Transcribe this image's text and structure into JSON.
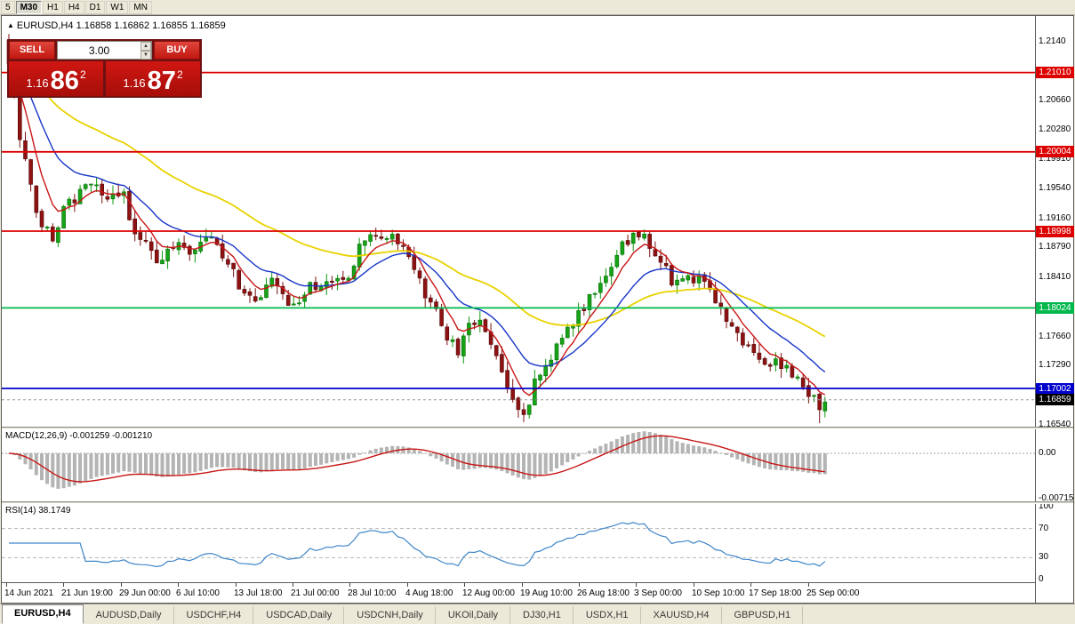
{
  "toolbar": {
    "timeframes": [
      {
        "label": "5",
        "active": false
      },
      {
        "label": "M30",
        "active": true
      },
      {
        "label": "H1",
        "active": false
      },
      {
        "label": "H4",
        "active": false
      },
      {
        "label": "D1",
        "active": false
      },
      {
        "label": "W1",
        "active": false
      },
      {
        "label": "MN",
        "active": false
      }
    ]
  },
  "chart": {
    "title_symbol": "EURUSD,H4",
    "title_quotes": "1.16858 1.16862 1.16855 1.16859",
    "marker": "▲",
    "axis_ticks": [
      "1.2140",
      "1.20660",
      "1.20280",
      "1.19910",
      "1.19540",
      "1.19160",
      "1.18790",
      "1.18410",
      "1.18040",
      "1.17660",
      "1.17290",
      "1.16540"
    ],
    "price_lines": [
      {
        "price": 1.2101,
        "label": "1.21010",
        "color": "#dd0000"
      },
      {
        "price": 1.20004,
        "label": "1.20004",
        "color": "#dd0000"
      },
      {
        "price": 1.18998,
        "label": "1.18998",
        "color": "#dd0000"
      },
      {
        "price": 1.18024,
        "label": "1.18024",
        "color": "#00b84c"
      },
      {
        "price": 1.17002,
        "label": "1.17002",
        "color": "#0000cc"
      }
    ],
    "current_price": {
      "price": 1.16859,
      "label": "1.16859",
      "color": "#000000"
    },
    "time_labels": [
      "14 Jun 2021",
      "21 Jun 19:00",
      "29 Jun 00:00",
      "6 Jul 10:00",
      "13 Jul 18:00",
      "21 Jul 00:00",
      "28 Jul 10:00",
      "4 Aug 18:00",
      "12 Aug 00:00",
      "19 Aug 10:00",
      "26 Aug 18:00",
      "3 Sep 00:00",
      "10 Sep 10:00",
      "17 Sep 18:00",
      "25 Sep 00:00"
    ]
  },
  "trade_panel": {
    "sell_label": "SELL",
    "buy_label": "BUY",
    "volume": "3.00",
    "sell_price": {
      "base": "1.16",
      "big": "86",
      "sup": "2"
    },
    "buy_price": {
      "base": "1.16",
      "big": "87",
      "sup": "2"
    }
  },
  "macd": {
    "label": "MACD(12,26,9) -0.001259 -0.001210",
    "axis": [
      {
        "text": "0.00",
        "value": 0
      },
      {
        "text": "-0.00715",
        "value": -0.00715
      }
    ]
  },
  "rsi": {
    "label": "RSI(14) 38.1749",
    "axis": [
      100,
      70,
      30,
      0
    ],
    "levels": [
      70,
      30
    ]
  },
  "tabs": [
    {
      "label": "EURUSD,H4",
      "active": true
    },
    {
      "label": "AUDUSD,Daily",
      "active": false
    },
    {
      "label": "USDCHF,H4",
      "active": false
    },
    {
      "label": "USDCAD,Daily",
      "active": false
    },
    {
      "label": "USDCNH,Daily",
      "active": false
    },
    {
      "label": "UKOil,Daily",
      "active": false
    },
    {
      "label": "DJ30,H1",
      "active": false
    },
    {
      "label": "USDX,H1",
      "active": false
    },
    {
      "label": "XAUUSD,H4",
      "active": false
    },
    {
      "label": "GBPUSD,H1",
      "active": false
    }
  ],
  "chart_data": {
    "type": "candlestick",
    "symbol": "EURUSD",
    "period": "H4",
    "visible_price_range": [
      1.1652,
      1.2173
    ],
    "indicators": {
      "macd_values": [
        -0.001259,
        -0.00121
      ],
      "rsi_value": 38.1749
    },
    "price_path_anchors": [
      [
        0.0,
        1.212
      ],
      [
        0.013,
        1.202
      ],
      [
        0.035,
        1.1925
      ],
      [
        0.051,
        1.189
      ],
      [
        0.073,
        1.1935
      ],
      [
        0.094,
        1.196
      ],
      [
        0.121,
        1.1945
      ],
      [
        0.138,
        1.195
      ],
      [
        0.154,
        1.1905
      ],
      [
        0.17,
        1.1875
      ],
      [
        0.187,
        1.186
      ],
      [
        0.208,
        1.189
      ],
      [
        0.224,
        1.1875
      ],
      [
        0.246,
        1.1895
      ],
      [
        0.268,
        1.1855
      ],
      [
        0.284,
        1.183
      ],
      [
        0.306,
        1.1815
      ],
      [
        0.322,
        1.184
      ],
      [
        0.338,
        1.1815
      ],
      [
        0.355,
        1.18
      ],
      [
        0.371,
        1.183
      ],
      [
        0.393,
        1.1845
      ],
      [
        0.409,
        1.183
      ],
      [
        0.425,
        1.187
      ],
      [
        0.441,
        1.1905
      ],
      [
        0.458,
        1.188
      ],
      [
        0.474,
        1.1895
      ],
      [
        0.49,
        1.186
      ],
      [
        0.512,
        1.182
      ],
      [
        0.534,
        1.177
      ],
      [
        0.55,
        1.1745
      ],
      [
        0.566,
        1.1785
      ],
      [
        0.582,
        1.1775
      ],
      [
        0.599,
        1.1745
      ],
      [
        0.615,
        1.169
      ],
      [
        0.631,
        1.1665
      ],
      [
        0.642,
        1.17
      ],
      [
        0.658,
        1.1735
      ],
      [
        0.675,
        1.1755
      ],
      [
        0.691,
        1.178
      ],
      [
        0.713,
        1.182
      ],
      [
        0.729,
        1.1845
      ],
      [
        0.75,
        1.1875
      ],
      [
        0.767,
        1.19
      ],
      [
        0.783,
        1.1885
      ],
      [
        0.799,
        1.1855
      ],
      [
        0.821,
        1.183
      ],
      [
        0.837,
        1.1845
      ],
      [
        0.859,
        1.182
      ],
      [
        0.875,
        1.18
      ],
      [
        0.891,
        1.177
      ],
      [
        0.908,
        1.1745
      ],
      [
        0.924,
        1.173
      ],
      [
        0.94,
        1.174
      ],
      [
        0.957,
        1.172
      ],
      [
        0.973,
        1.171
      ],
      [
        0.984,
        1.169
      ],
      [
        0.991,
        1.167
      ],
      [
        1.0,
        1.1688
      ]
    ]
  }
}
